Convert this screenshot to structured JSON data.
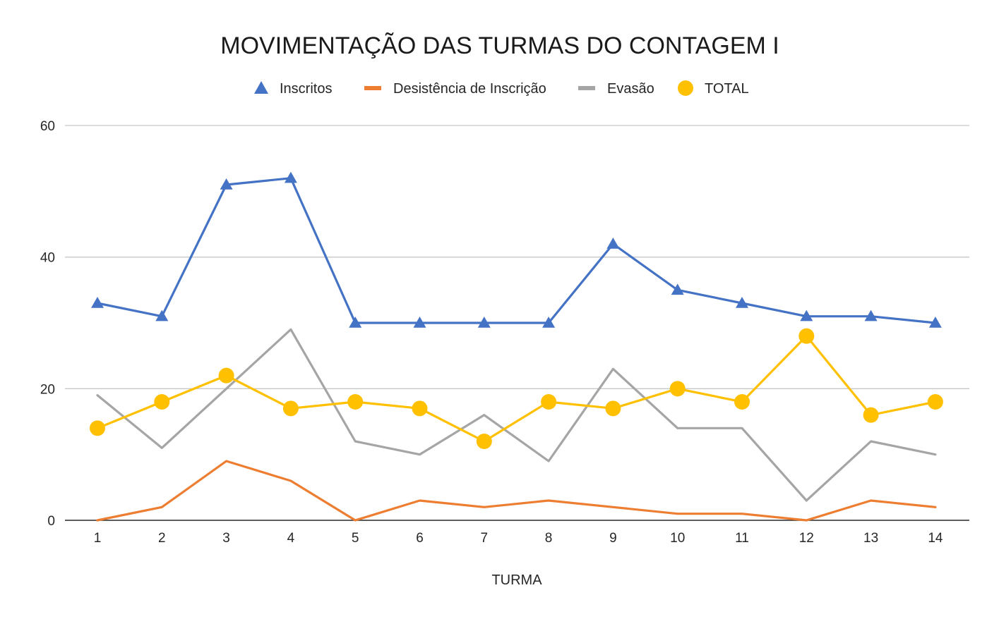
{
  "chart_data": {
    "type": "line",
    "title": "MOVIMENTAÇÃO DAS TURMAS DO CONTAGEM I",
    "xlabel": "TURMA",
    "ylabel": "",
    "categories": [
      "1",
      "2",
      "3",
      "4",
      "5",
      "6",
      "7",
      "8",
      "9",
      "10",
      "11",
      "12",
      "13",
      "14"
    ],
    "yticks": [
      "0",
      "20",
      "40",
      "60"
    ],
    "ylim": [
      0,
      60
    ],
    "grid": true,
    "legend_position": "top",
    "series": [
      {
        "name": "Inscritos",
        "color": "#4472C4",
        "marker": "triangle",
        "values": [
          33,
          31,
          51,
          52,
          30,
          30,
          30,
          30,
          42,
          35,
          33,
          31,
          31,
          30
        ]
      },
      {
        "name": "Desistência de Inscrição",
        "color": "#ED7D31",
        "marker": "none",
        "values": [
          0,
          2,
          9,
          6,
          0,
          3,
          2,
          3,
          2,
          1,
          1,
          0,
          3,
          2
        ]
      },
      {
        "name": "Evasão",
        "color": "#A5A5A5",
        "marker": "none",
        "values": [
          19,
          11,
          20,
          29,
          12,
          10,
          16,
          9,
          23,
          14,
          14,
          3,
          12,
          10
        ]
      },
      {
        "name": "TOTAL",
        "color": "#FFC000",
        "marker": "circle",
        "values": [
          14,
          18,
          22,
          17,
          18,
          17,
          12,
          18,
          17,
          20,
          18,
          28,
          16,
          18
        ]
      }
    ]
  }
}
